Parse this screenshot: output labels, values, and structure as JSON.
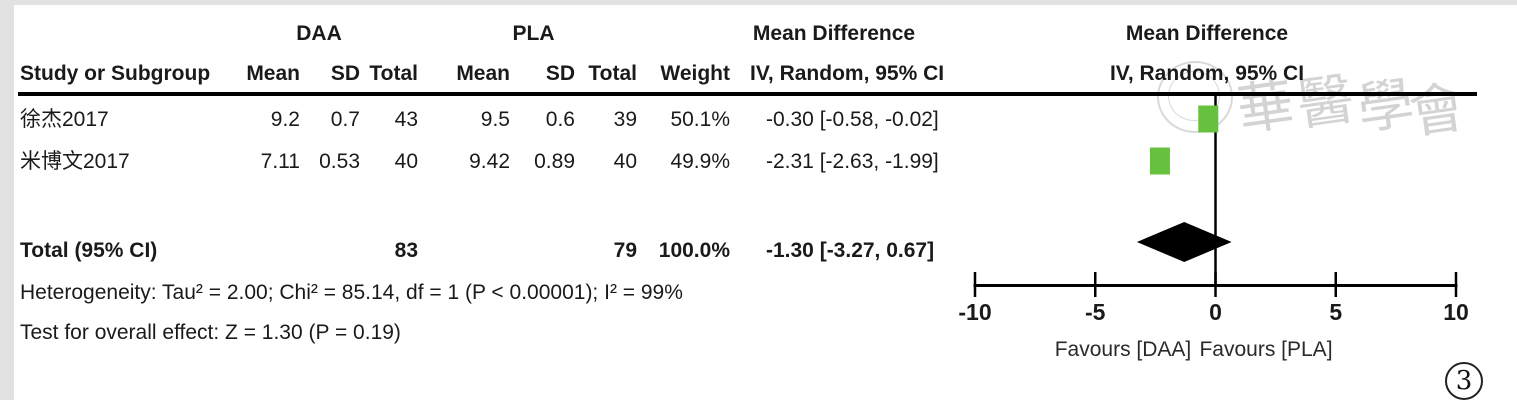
{
  "header": {
    "group1": "DAA",
    "group2": "PLA",
    "study": "Study or Subgroup",
    "mean": "Mean",
    "sd": "SD",
    "total": "Total",
    "weight": "Weight",
    "effect_line1": "Mean Difference",
    "effect_line2": "IV, Random, 95% CI",
    "plot_line1": "Mean Difference",
    "plot_line2": "IV, Random, 95% CI"
  },
  "rows": [
    {
      "study": "徐杰2017",
      "mean1": "9.2",
      "sd1": "0.7",
      "total1": "43",
      "mean2": "9.5",
      "sd2": "0.6",
      "total2": "39",
      "weight": "50.1%",
      "ci": "-0.30 [-0.58, -0.02]"
    },
    {
      "study": "米博文2017",
      "mean1": "7.11",
      "sd1": "0.53",
      "total1": "40",
      "mean2": "9.42",
      "sd2": "0.89",
      "total2": "40",
      "weight": "49.9%",
      "ci": "-2.31 [-2.63, -1.99]"
    }
  ],
  "total_row": {
    "label": "Total (95% CI)",
    "total1": "83",
    "total2": "79",
    "weight": "100.0%",
    "ci": "-1.30 [-3.27, 0.67]"
  },
  "footnotes": {
    "heterogeneity": "Heterogeneity: Tau² = 2.00; Chi² = 85.14, df = 1 (P < 0.00001); I² = 99%",
    "overall_effect": "Test for overall effect: Z = 1.30 (P = 0.19)"
  },
  "chart_data": {
    "type": "forest",
    "effect_measure": "Mean Difference",
    "model": "IV, Random, 95% CI",
    "axis": {
      "min": -10,
      "max": 10,
      "ticks": [
        -10,
        -5,
        0,
        5,
        10
      ]
    },
    "favours_left": "Favours [DAA]",
    "favours_right": "Favours [PLA]",
    "studies": [
      {
        "name": "徐杰2017",
        "md": -0.3,
        "ci_low": -0.58,
        "ci_high": -0.02,
        "weight_pct": 50.1
      },
      {
        "name": "米博文2017",
        "md": -2.31,
        "ci_low": -2.63,
        "ci_high": -1.99,
        "weight_pct": 49.9
      }
    ],
    "total": {
      "md": -1.3,
      "ci_low": -3.27,
      "ci_high": 0.67,
      "weight_pct": 100.0
    },
    "marker_color": "#66c13e",
    "diamond_color": "#000000",
    "heterogeneity": {
      "tau2": 2.0,
      "chi2": 85.14,
      "df": 1,
      "p": "< 0.00001",
      "i2_pct": 99
    },
    "overall_effect": {
      "z": 1.3,
      "p": 0.19
    }
  },
  "watermark": {
    "chars": [
      "華",
      "醫",
      "學",
      "會"
    ]
  },
  "figure_badge": "3"
}
